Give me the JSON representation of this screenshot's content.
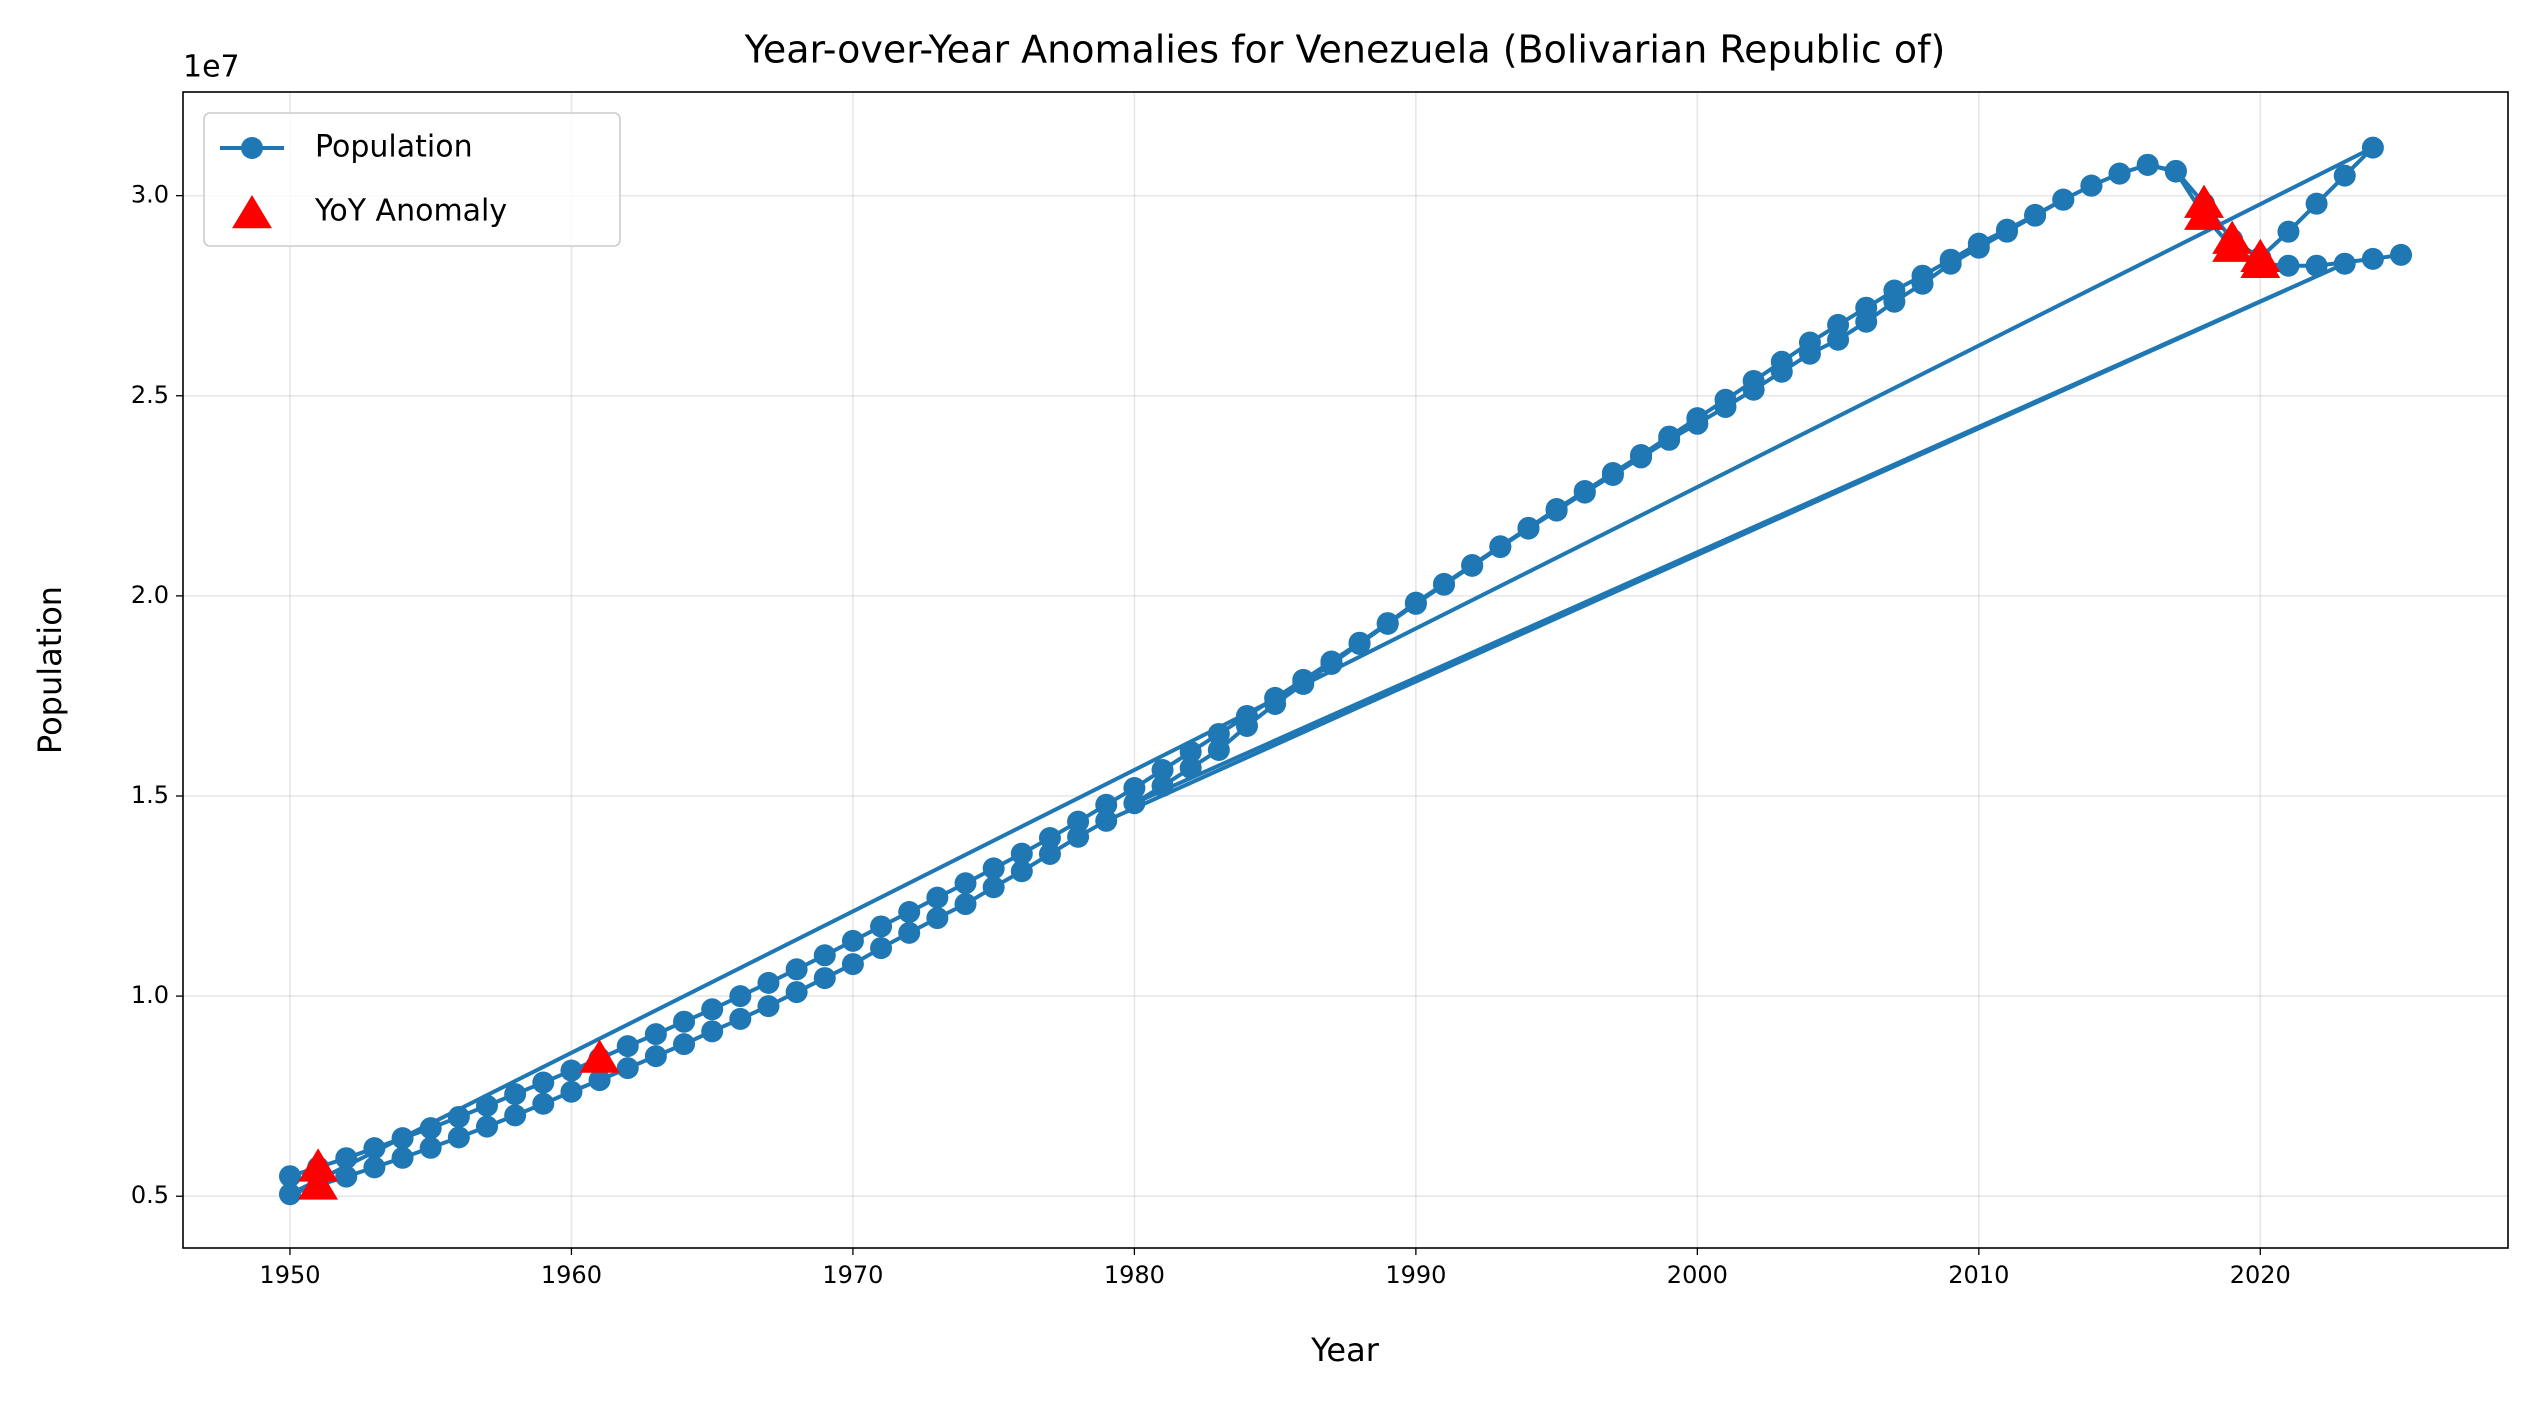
{
  "chart_data": {
    "type": "line",
    "title": "Year-over-Year Anomalies for Venezuela (Bolivarian Republic of)",
    "xlabel": "Year",
    "ylabel": "Population",
    "y_offset_label": "1e7",
    "xlim": [
      1946.2,
      2028.8
    ],
    "xticks": [
      1950,
      1960,
      1970,
      1980,
      1990,
      2000,
      2010,
      2020
    ],
    "ylim": [
      3706000,
      32590000
    ],
    "yticks": [
      {
        "value": 5000000,
        "label": "0.5"
      },
      {
        "value": 10000000,
        "label": "1.0"
      },
      {
        "value": 15000000,
        "label": "1.5"
      },
      {
        "value": 20000000,
        "label": "2.0"
      },
      {
        "value": 25000000,
        "label": "2.5"
      },
      {
        "value": 30000000,
        "label": "3.0"
      }
    ],
    "grid": true,
    "legend": "upper left",
    "series": [
      {
        "name": "Population",
        "color": "#1f77b4",
        "marker": "circle",
        "x": [
          1950,
          1951,
          1952,
          1953,
          1954,
          1955,
          1956,
          1957,
          1958,
          1959,
          1960,
          1961,
          1962,
          1963,
          1964,
          1965,
          1966,
          1967,
          1968,
          1969,
          1970,
          1971,
          1972,
          1973,
          1974,
          1975,
          1976,
          1977,
          1978,
          1979,
          1980,
          1981,
          1982,
          1983,
          1984,
          1985,
          1986,
          1987,
          1988,
          1989,
          1990,
          1991,
          1992,
          1993,
          1994,
          1995,
          1996,
          1997,
          1998,
          1999,
          2000,
          2001,
          2002,
          2003,
          2004,
          2005,
          2006,
          2007,
          2008,
          2009,
          2010,
          2011,
          2012,
          2013,
          2014,
          2015,
          2016,
          2017,
          2018,
          2019,
          2020,
          2021,
          2022,
          2023,
          2024,
          1950,
          1951,
          1952,
          1953,
          1954,
          1955,
          1956,
          1957,
          1958,
          1959,
          1960,
          1961,
          1962,
          1963,
          1964,
          1965,
          1966,
          1967,
          1968,
          1969,
          1970,
          1971,
          1972,
          1973,
          1974,
          1975,
          1976,
          1977,
          1978,
          1979,
          2023,
          1980,
          1981,
          1982,
          1983,
          1984,
          1985,
          1986,
          1987,
          1988,
          1989,
          1990,
          1991,
          1992,
          1993,
          1994,
          1995,
          1996,
          1997,
          1998,
          1999,
          2000,
          2001,
          2002,
          2003,
          2004,
          2005,
          2006,
          2007,
          2008,
          2009,
          2010,
          2011,
          2012,
          2013,
          2014,
          2015,
          2016,
          2017,
          2018,
          2019,
          2020,
          2021,
          2022,
          2024,
          2025
        ],
        "values": [
          5500000,
          5720000,
          5950000,
          6200000,
          6450000,
          6700000,
          6980000,
          7260000,
          7550000,
          7840000,
          8140000,
          8440000,
          8750000,
          9050000,
          9360000,
          9670000,
          10000000,
          10330000,
          10670000,
          11020000,
          11380000,
          11740000,
          12100000,
          12460000,
          12820000,
          13190000,
          13560000,
          13950000,
          14360000,
          14780000,
          15200000,
          15650000,
          16100000,
          16550000,
          17000000,
          17450000,
          17900000,
          18360000,
          18830000,
          19320000,
          19830000,
          20300000,
          20770000,
          21240000,
          21700000,
          22170000,
          22620000,
          23070000,
          23520000,
          23980000,
          24440000,
          24900000,
          25370000,
          25850000,
          26330000,
          26770000,
          27200000,
          27630000,
          28000000,
          28400000,
          28800000,
          29150000,
          29520000,
          29900000,
          30250000,
          30550000,
          30770000,
          30620000,
          29800000,
          28900000,
          28450000,
          29100000,
          29800000,
          30500000,
          31200000,
          5050000,
          5270000,
          5490000,
          5720000,
          5960000,
          6210000,
          6470000,
          6740000,
          7020000,
          7310000,
          7610000,
          7900000,
          8200000,
          8500000,
          8800000,
          9120000,
          9430000,
          9750000,
          10100000,
          10450000,
          10800000,
          11200000,
          11580000,
          11950000,
          12300000,
          12720000,
          13120000,
          13550000,
          13980000,
          14380000,
          28300000,
          14820000,
          15250000,
          15700000,
          16150000,
          16750000,
          17300000,
          17800000,
          18300000,
          18800000,
          19300000,
          19800000,
          20280000,
          20750000,
          21220000,
          21680000,
          22130000,
          22580000,
          23020000,
          23460000,
          23900000,
          24300000,
          24720000,
          25150000,
          25600000,
          26050000,
          26400000,
          26850000,
          27350000,
          27800000,
          28300000,
          28700000,
          29100000,
          29500000,
          29900000,
          30250000,
          30550000,
          30770000,
          30600000,
          29500000,
          28700000,
          28300000,
          28250000,
          28250000,
          28420000,
          28520000
        ]
      },
      {
        "name": "YoY Anomaly",
        "color": "#ff0000",
        "marker": "triangle",
        "scatter": true,
        "x": [
          1951,
          1951,
          1961,
          2018,
          2018,
          2019,
          2019,
          2020,
          2020
        ],
        "values": [
          5720000,
          5270000,
          8440000,
          29800000,
          29500000,
          28900000,
          28700000,
          28450000,
          28300000
        ]
      }
    ]
  }
}
